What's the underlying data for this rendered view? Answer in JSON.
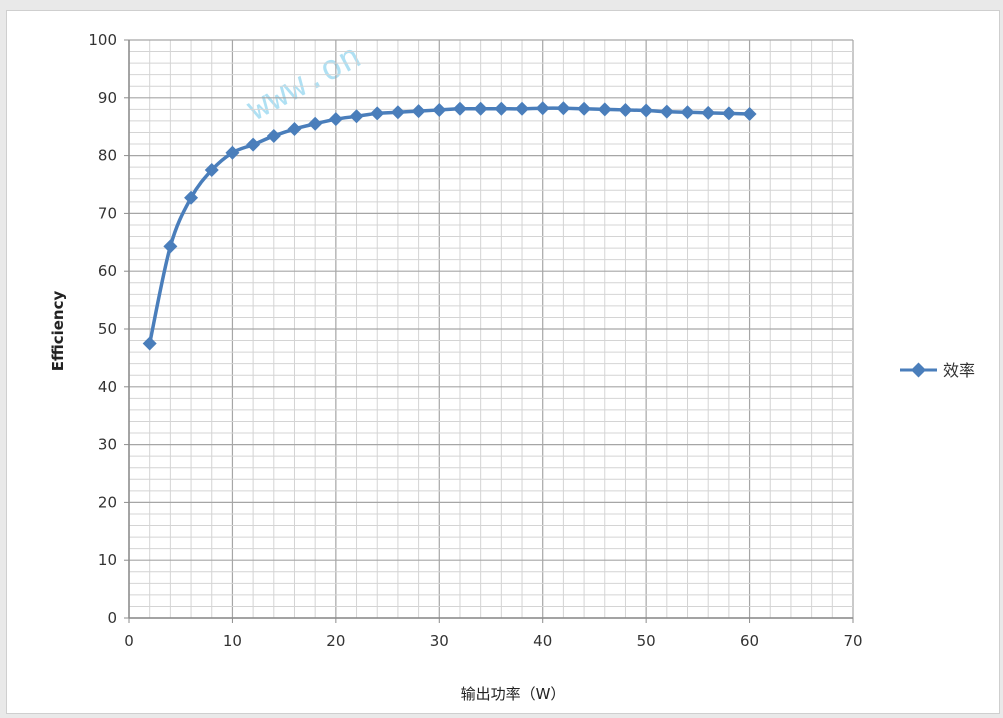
{
  "chart_data": {
    "type": "line",
    "title": "",
    "xlabel": "输出功率（W）",
    "ylabel": "Efficiency",
    "xlim": [
      0,
      70
    ],
    "ylim": [
      0,
      100
    ],
    "x_ticks": [
      0,
      10,
      20,
      30,
      40,
      50,
      60,
      70
    ],
    "y_ticks": [
      0,
      10,
      20,
      30,
      40,
      50,
      60,
      70,
      80,
      90,
      100
    ],
    "grid": true,
    "legend_position": "right",
    "series": [
      {
        "name": "效率",
        "color": "#4a7ebb",
        "marker": "diamond",
        "x": [
          2,
          4,
          6,
          8,
          10,
          12,
          14,
          16,
          18,
          20,
          22,
          24,
          26,
          28,
          30,
          32,
          34,
          36,
          38,
          40,
          42,
          44,
          46,
          48,
          50,
          52,
          54,
          56,
          58,
          60
        ],
        "y": [
          47.5,
          64.3,
          72.7,
          77.5,
          80.5,
          81.9,
          83.4,
          84.6,
          85.5,
          86.3,
          86.8,
          87.3,
          87.5,
          87.7,
          87.9,
          88.1,
          88.1,
          88.1,
          88.1,
          88.2,
          88.2,
          88.1,
          88.0,
          87.9,
          87.8,
          87.6,
          87.5,
          87.4,
          87.3,
          87.2
        ]
      }
    ]
  },
  "watermark": "www.on"
}
